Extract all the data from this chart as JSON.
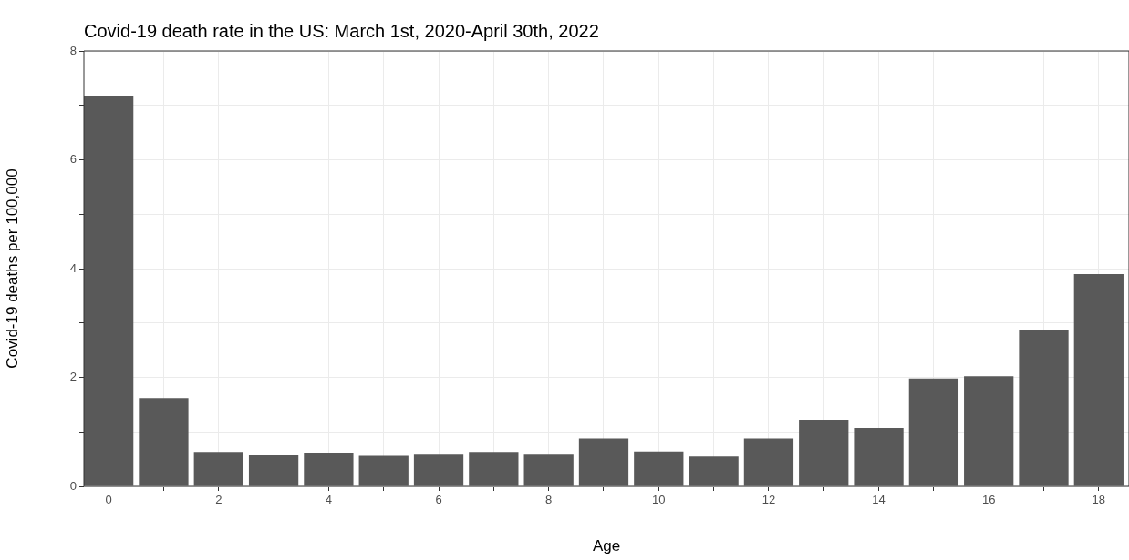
{
  "chart_data": {
    "type": "bar",
    "title": "Covid-19 death rate in the US: March 1st, 2020-April 30th, 2022",
    "xlabel": "Age",
    "ylabel": "Covid-19 deaths per 100,000",
    "x": [
      0,
      1,
      2,
      3,
      4,
      5,
      6,
      7,
      8,
      9,
      10,
      11,
      12,
      13,
      14,
      15,
      16,
      17,
      18
    ],
    "values": [
      7.18,
      1.62,
      0.63,
      0.57,
      0.61,
      0.56,
      0.58,
      0.63,
      0.58,
      0.88,
      0.64,
      0.55,
      0.88,
      1.22,
      1.07,
      1.98,
      2.02,
      2.88,
      3.9
    ],
    "color": "#595959",
    "xlim": [
      -0.45,
      18.55
    ],
    "xticks": [
      0,
      {
        "value": 1,
        "label": null
      },
      2,
      {
        "value": 3,
        "label": null
      },
      4,
      {
        "value": 5,
        "label": null
      },
      6,
      {
        "value": 7,
        "label": null
      },
      8,
      {
        "value": 9,
        "label": null
      },
      10,
      {
        "value": 11,
        "label": null
      },
      12,
      {
        "value": 13,
        "label": null
      },
      14,
      {
        "value": 15,
        "label": null
      },
      16,
      {
        "value": 17,
        "label": null
      },
      18
    ],
    "ylim": [
      0,
      8
    ],
    "yticks": [
      0,
      {
        "value": 1,
        "label": null
      },
      2,
      {
        "value": 3,
        "label": null
      },
      4,
      {
        "value": 5,
        "label": null
      },
      6,
      {
        "value": 7,
        "label": null
      },
      8
    ],
    "grid": true
  }
}
